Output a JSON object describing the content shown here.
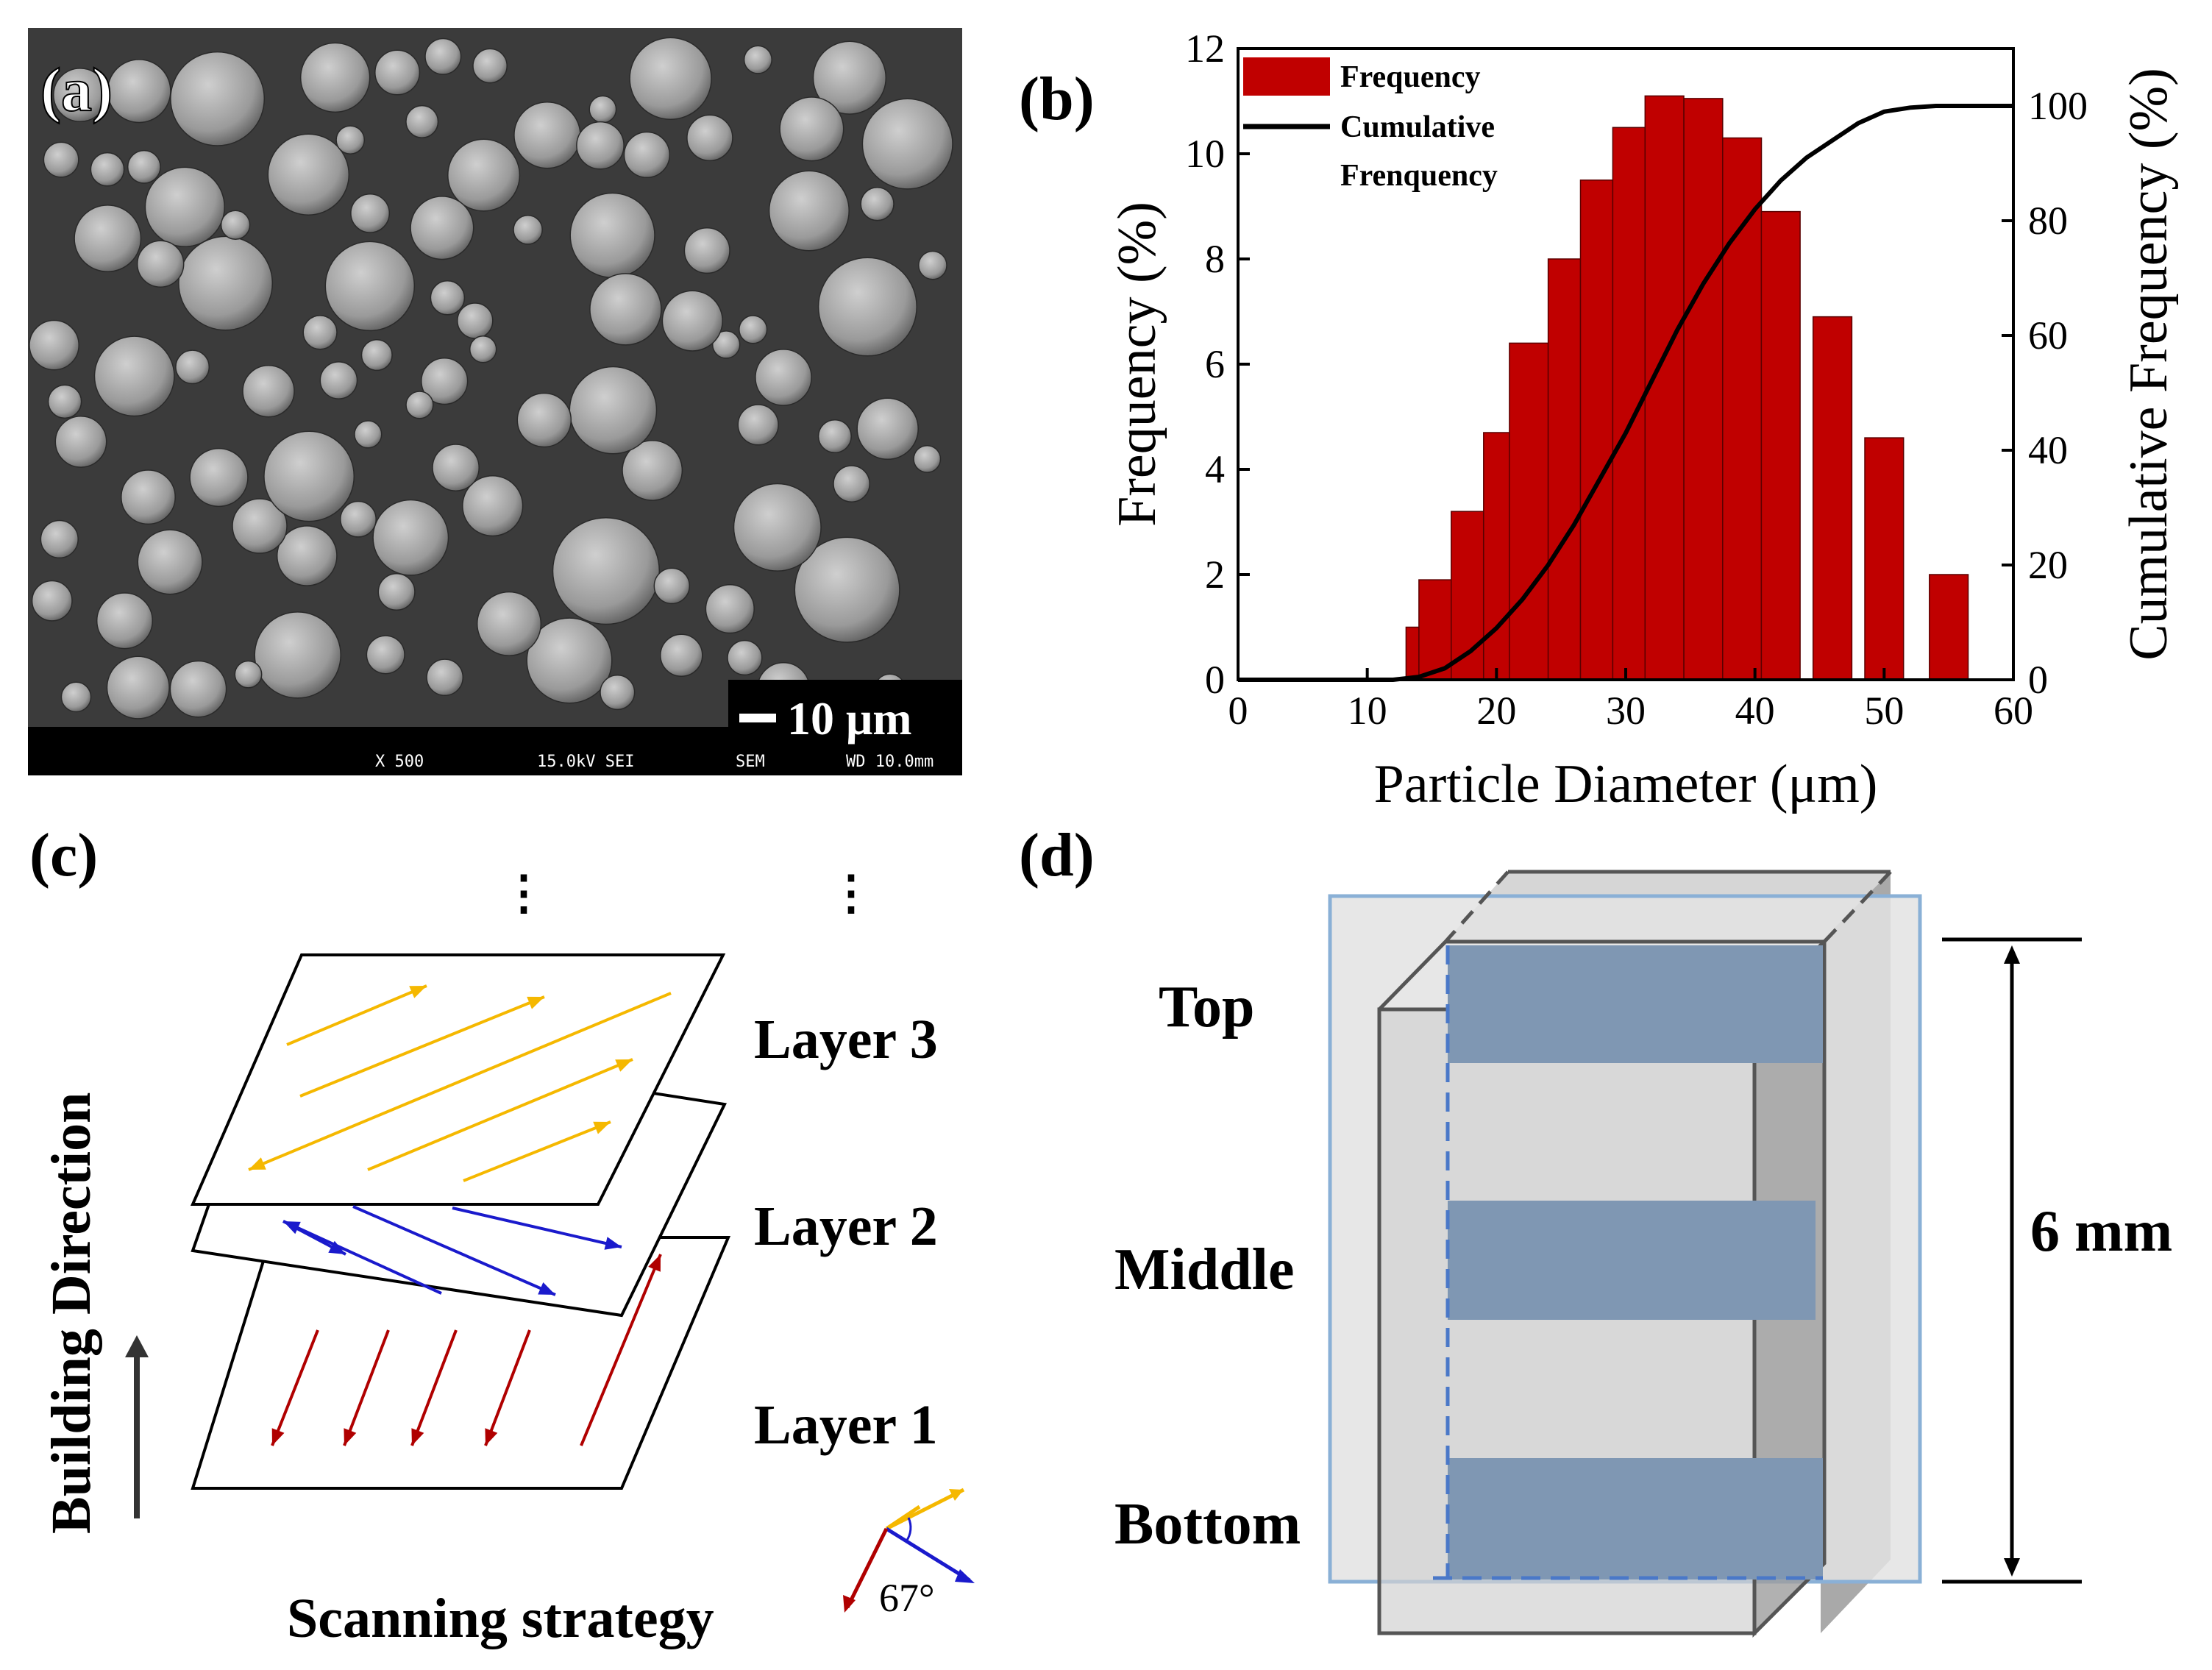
{
  "panels": {
    "a": {
      "label": "(a)",
      "scale_bar": "10 μm",
      "footer": [
        "X 500",
        "15.0kV SEI",
        "SEM",
        "WD 10.0mm"
      ]
    },
    "b": {
      "label": "(b)",
      "legend_frequency": "Frequency",
      "legend_cumulative_1": "Cumulative",
      "legend_cumulative_2": "Frenquency"
    },
    "c": {
      "label": "(c)",
      "dots": "⋮",
      "layer3": "Layer 3",
      "layer2": "Layer 2",
      "layer1": "Layer 1",
      "building_direction": "Building Direction",
      "scanning_strategy": "Scanning strategy",
      "angle": "67°"
    },
    "d": {
      "label": "(d)",
      "top": "Top",
      "middle": "Middle",
      "bottom": "Bottom",
      "height": "6 mm"
    }
  },
  "colors": {
    "bar_red": "#c00000",
    "layer3_arrow": "#f5b800",
    "layer2_arrow": "#1a1acc",
    "layer1_arrow": "#b00000",
    "band_blue": "#7f97b3",
    "frame_blue": "#8ab0d6"
  },
  "chart_data": {
    "type": "bar",
    "title": "",
    "xlabel": "Particle Diameter (μm)",
    "ylabel": "Frequency (%)",
    "y2label": "Cumulative Frequency (%)",
    "xlim": [
      0,
      60
    ],
    "ylim": [
      0,
      12
    ],
    "y2lim": [
      0,
      110
    ],
    "xticks": [
      0,
      10,
      20,
      30,
      40,
      50,
      60
    ],
    "yticks": [
      0,
      2,
      4,
      6,
      8,
      10,
      12
    ],
    "y2ticks": [
      0,
      20,
      40,
      60,
      80,
      100
    ],
    "bars": [
      {
        "x0": 13.0,
        "x1": 14.0,
        "value": 1.0
      },
      {
        "x0": 14.0,
        "x1": 16.5,
        "value": 1.9
      },
      {
        "x0": 16.5,
        "x1": 19.0,
        "value": 3.2
      },
      {
        "x0": 19.0,
        "x1": 21.0,
        "value": 4.7
      },
      {
        "x0": 21.0,
        "x1": 24.0,
        "value": 6.4
      },
      {
        "x0": 24.0,
        "x1": 26.5,
        "value": 8.0
      },
      {
        "x0": 26.5,
        "x1": 29.0,
        "value": 9.5
      },
      {
        "x0": 29.0,
        "x1": 31.5,
        "value": 10.5
      },
      {
        "x0": 31.5,
        "x1": 34.5,
        "value": 11.1
      },
      {
        "x0": 34.5,
        "x1": 37.5,
        "value": 11.05
      },
      {
        "x0": 37.5,
        "x1": 40.5,
        "value": 10.3
      },
      {
        "x0": 40.5,
        "x1": 43.5,
        "value": 8.9
      },
      {
        "x0": 44.5,
        "x1": 47.5,
        "value": 6.9
      },
      {
        "x0": 48.5,
        "x1": 51.5,
        "value": 4.6
      },
      {
        "x0": 53.5,
        "x1": 56.5,
        "value": 2.0
      }
    ],
    "cumulative": {
      "x": [
        0,
        12,
        14,
        16,
        18,
        20,
        22,
        24,
        26,
        28,
        30,
        32,
        34,
        36,
        38,
        40,
        42,
        44,
        46,
        48,
        50,
        52,
        54,
        56,
        58,
        60
      ],
      "y": [
        0,
        0,
        0.5,
        2,
        5,
        9,
        14,
        20,
        27,
        35,
        43,
        52,
        61,
        69,
        76,
        82,
        87,
        91,
        94,
        97,
        99,
        99.7,
        100,
        100,
        100,
        100
      ]
    }
  }
}
